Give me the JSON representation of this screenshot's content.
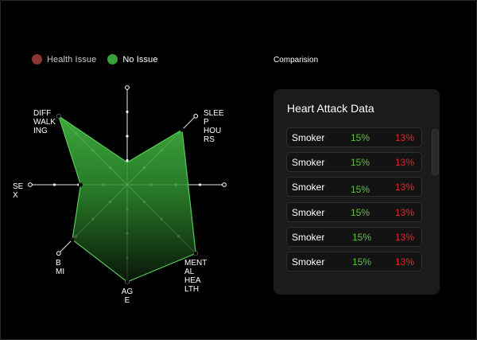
{
  "legend": {
    "items": [
      {
        "label": "Health Issue",
        "color": "#8b3535"
      },
      {
        "label": "No Issue",
        "color": "#3aa03a"
      }
    ]
  },
  "comparison": {
    "label": "Comparision"
  },
  "card": {
    "title": "Heart Attack Data",
    "rows": [
      {
        "label": "Smoker",
        "no_issue": "15%",
        "health_issue": "13%"
      },
      {
        "label": "Smoker",
        "no_issue": "15%",
        "health_issue": "13%"
      },
      {
        "label": "Smoker",
        "no_issue": "15%",
        "health_issue": "13%"
      },
      {
        "label": "Smoker",
        "no_issue": "15%",
        "health_issue": "13%"
      },
      {
        "label": "Smoker",
        "no_issue": "15%",
        "health_issue": "13%"
      },
      {
        "label": "Smoker",
        "no_issue": "15%",
        "health_issue": "13%"
      }
    ]
  },
  "chart_data": {
    "type": "radar",
    "axes": [
      {
        "key": "sleep_hours",
        "label_lines": [
          "SLEE",
          "P",
          "HOU",
          "RS"
        ]
      },
      {
        "key": "sex",
        "label_lines": [
          "SE",
          "X"
        ]
      },
      {
        "key": "mental_health",
        "label_lines": [
          "MENT",
          "AL",
          "HEA",
          "LTH"
        ]
      },
      {
        "key": "diff_walking",
        "label_lines": [
          "DIFF",
          "WALK",
          "ING"
        ]
      },
      {
        "key": "age",
        "label_lines": [
          "AG",
          "E"
        ]
      },
      {
        "key": "bmi",
        "label_lines": [
          "B",
          "MI"
        ]
      }
    ],
    "series": [
      {
        "name": "No Issue",
        "color": "#3aa03a",
        "values": {
          "sleep_hours": 0.8,
          "sex": 0.48,
          "mental_health": 1.0,
          "diff_walking": 1.0,
          "age": 1.0,
          "bmi": 0.8
        }
      }
    ],
    "grid": true
  }
}
